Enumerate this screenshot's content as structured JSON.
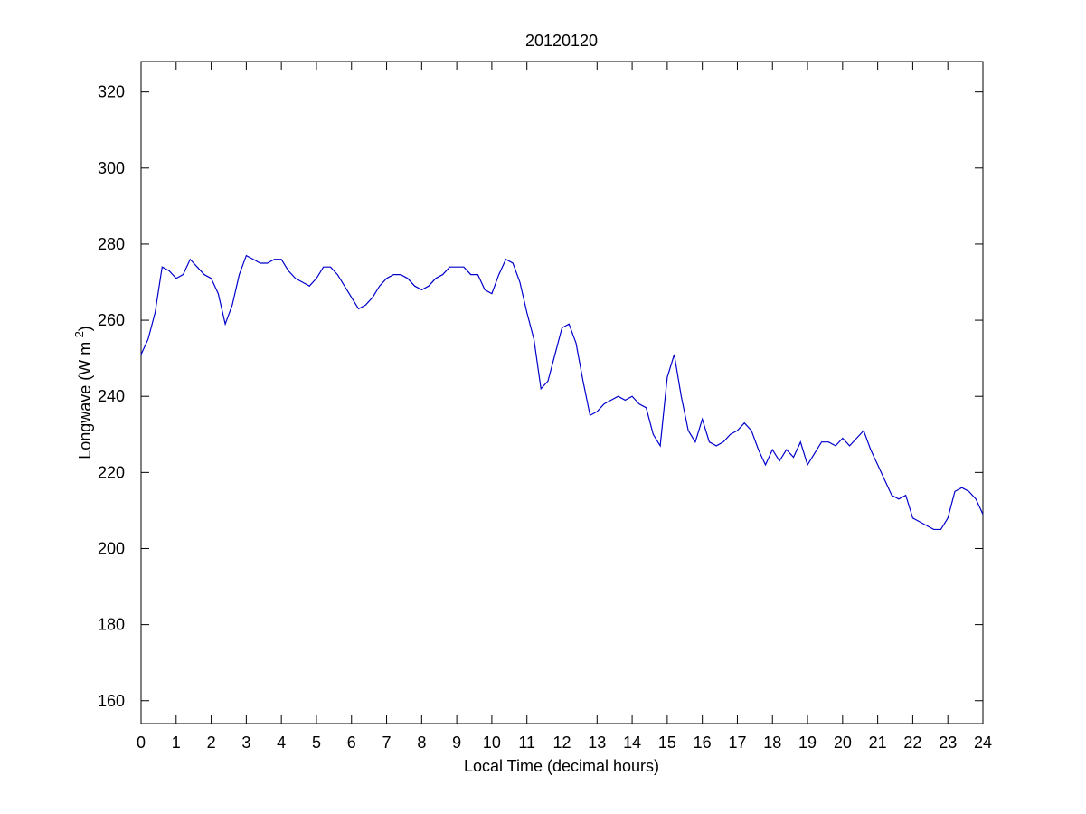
{
  "chart_data": {
    "type": "line",
    "title": "20120120",
    "x_label": "Local Time (decimal hours)",
    "y_label": {
      "text": "Longwave (W m",
      "sup": "-2",
      "after": ")"
    },
    "color": "#0000cc",
    "xlim": [
      0,
      24
    ],
    "xticks": [
      0,
      1,
      2,
      3,
      4,
      5,
      6,
      7,
      8,
      9,
      10,
      11,
      12,
      13,
      14,
      15,
      16,
      17,
      18,
      19,
      20,
      21,
      22,
      23,
      24
    ],
    "ylim": [
      154,
      328
    ],
    "yticks": [
      160,
      180,
      200,
      220,
      240,
      260,
      280,
      300,
      320
    ],
    "x": [
      0,
      0.2,
      0.4,
      0.6,
      0.8,
      1.0,
      1.2,
      1.4,
      1.6,
      1.8,
      2.0,
      2.2,
      2.4,
      2.6,
      2.8,
      3.0,
      3.2,
      3.4,
      3.6,
      3.8,
      4.0,
      4.2,
      4.4,
      4.6,
      4.8,
      5.0,
      5.2,
      5.4,
      5.6,
      5.8,
      6.0,
      6.2,
      6.4,
      6.6,
      6.8,
      7.0,
      7.2,
      7.4,
      7.6,
      7.8,
      8.0,
      8.2,
      8.4,
      8.6,
      8.8,
      9.0,
      9.2,
      9.4,
      9.6,
      9.8,
      10.0,
      10.2,
      10.4,
      10.6,
      10.8,
      11.0,
      11.2,
      11.4,
      11.6,
      11.8,
      12.0,
      12.2,
      12.4,
      12.6,
      12.8,
      13.0,
      13.2,
      13.4,
      13.6,
      13.8,
      14.0,
      14.2,
      14.4,
      14.6,
      14.8,
      15.0,
      15.2,
      15.4,
      15.6,
      15.8,
      16.0,
      16.2,
      16.4,
      16.6,
      16.8,
      17.0,
      17.2,
      17.4,
      17.6,
      17.8,
      18.0,
      18.2,
      18.4,
      18.6,
      18.8,
      19.0,
      19.2,
      19.4,
      19.6,
      19.8,
      20.0,
      20.2,
      20.4,
      20.6,
      20.8,
      21.0,
      21.2,
      21.4,
      21.6,
      21.8,
      22.0,
      22.2,
      22.4,
      22.6,
      22.8,
      23.0,
      23.2,
      23.4,
      23.6,
      23.8,
      24.0
    ],
    "values": [
      251,
      255,
      262,
      274,
      273,
      271,
      272,
      276,
      274,
      272,
      271,
      267,
      259,
      264,
      272,
      277,
      276,
      275,
      275,
      276,
      276,
      273,
      271,
      270,
      269,
      271,
      274,
      274,
      272,
      269,
      266,
      263,
      264,
      266,
      269,
      271,
      272,
      272,
      271,
      269,
      268,
      269,
      271,
      272,
      274,
      274,
      274,
      272,
      272,
      268,
      267,
      272,
      276,
      275,
      270,
      262,
      255,
      242,
      244,
      251,
      258,
      259,
      254,
      244,
      235,
      236,
      238,
      239,
      240,
      239,
      240,
      238,
      237,
      230,
      227,
      245,
      251,
      240,
      231,
      228,
      234,
      228,
      227,
      228,
      230,
      231,
      233,
      231,
      226,
      222,
      226,
      223,
      226,
      224,
      228,
      222,
      225,
      228,
      228,
      227,
      229,
      227,
      229,
      231,
      226,
      222,
      218,
      214,
      213,
      214,
      208,
      207,
      206,
      205,
      205,
      208,
      215,
      216,
      215,
      213,
      209
    ]
  }
}
